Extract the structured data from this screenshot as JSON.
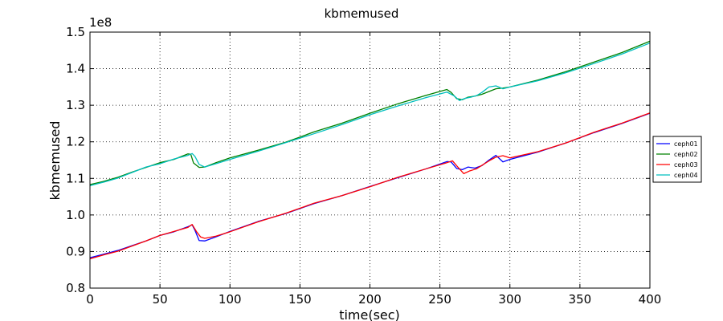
{
  "chart_data": {
    "type": "line",
    "title": "kbmemused",
    "xlabel": "time(sec)",
    "ylabel": "kbmemused",
    "y_offset_label": "1e8",
    "xlim": [
      0,
      400
    ],
    "ylim": [
      0.8,
      1.5
    ],
    "x_ticks": [
      0,
      50,
      100,
      150,
      200,
      250,
      300,
      350,
      400
    ],
    "y_ticks": [
      0.8,
      0.9,
      1.0,
      1.1,
      1.2,
      1.3,
      1.4,
      1.5
    ],
    "y_tick_labels": [
      "0.8",
      "0.9",
      "1.0",
      "1.1",
      "1.2",
      "1.3",
      "1.4",
      "1.5"
    ],
    "grid": true,
    "legend_position": "center-right-outside",
    "series": [
      {
        "name": "ceph01",
        "color": "#0000ff",
        "x": [
          0,
          10,
          20,
          30,
          40,
          50,
          60,
          70,
          73,
          75,
          78,
          82,
          90,
          100,
          120,
          140,
          160,
          180,
          200,
          220,
          240,
          255,
          258,
          262,
          266,
          270,
          275,
          280,
          285,
          290,
          295,
          300,
          320,
          340,
          360,
          380,
          400
        ],
        "y": [
          0.883,
          0.893,
          0.903,
          0.916,
          0.929,
          0.944,
          0.954,
          0.968,
          0.973,
          0.958,
          0.93,
          0.929,
          0.94,
          0.955,
          0.982,
          1.004,
          1.031,
          1.053,
          1.078,
          1.102,
          1.126,
          1.146,
          1.145,
          1.127,
          1.124,
          1.131,
          1.128,
          1.135,
          1.15,
          1.163,
          1.145,
          1.152,
          1.172,
          1.197,
          1.225,
          1.25,
          1.278
        ]
      },
      {
        "name": "ceph02",
        "color": "#008000",
        "x": [
          0,
          10,
          20,
          30,
          40,
          50,
          60,
          70,
          72,
          74,
          78,
          82,
          90,
          100,
          120,
          140,
          160,
          180,
          200,
          220,
          240,
          255,
          258,
          262,
          266,
          270,
          275,
          280,
          290,
          295,
          300,
          320,
          340,
          360,
          380,
          400
        ],
        "y": [
          1.083,
          1.092,
          1.103,
          1.117,
          1.13,
          1.143,
          1.152,
          1.167,
          1.166,
          1.142,
          1.13,
          1.131,
          1.143,
          1.156,
          1.177,
          1.199,
          1.227,
          1.251,
          1.278,
          1.304,
          1.327,
          1.343,
          1.335,
          1.318,
          1.315,
          1.322,
          1.325,
          1.33,
          1.345,
          1.347,
          1.35,
          1.369,
          1.392,
          1.418,
          1.444,
          1.475
        ]
      },
      {
        "name": "ceph03",
        "color": "#ff0000",
        "x": [
          0,
          10,
          20,
          30,
          40,
          50,
          60,
          70,
          73,
          76,
          79,
          82,
          90,
          100,
          120,
          140,
          160,
          180,
          200,
          220,
          240,
          255,
          259,
          263,
          267,
          271,
          276,
          281,
          286,
          290,
          295,
          300,
          320,
          340,
          360,
          380,
          400
        ],
        "y": [
          0.88,
          0.891,
          0.901,
          0.915,
          0.929,
          0.944,
          0.955,
          0.966,
          0.974,
          0.955,
          0.94,
          0.936,
          0.942,
          0.954,
          0.981,
          1.005,
          1.032,
          1.053,
          1.077,
          1.103,
          1.126,
          1.143,
          1.148,
          1.13,
          1.113,
          1.12,
          1.126,
          1.138,
          1.15,
          1.158,
          1.162,
          1.156,
          1.173,
          1.197,
          1.226,
          1.251,
          1.279
        ]
      },
      {
        "name": "ceph04",
        "color": "#00bfbf",
        "x": [
          0,
          10,
          20,
          30,
          40,
          50,
          60,
          70,
          73,
          75,
          78,
          82,
          90,
          100,
          120,
          140,
          160,
          180,
          200,
          220,
          240,
          255,
          260,
          264,
          268,
          272,
          276,
          280,
          285,
          290,
          295,
          300,
          320,
          340,
          360,
          380,
          400
        ],
        "y": [
          1.08,
          1.09,
          1.101,
          1.116,
          1.131,
          1.14,
          1.153,
          1.163,
          1.168,
          1.16,
          1.138,
          1.131,
          1.14,
          1.152,
          1.174,
          1.198,
          1.222,
          1.247,
          1.274,
          1.298,
          1.321,
          1.336,
          1.326,
          1.313,
          1.319,
          1.322,
          1.326,
          1.335,
          1.35,
          1.353,
          1.345,
          1.35,
          1.367,
          1.389,
          1.414,
          1.44,
          1.47
        ]
      }
    ]
  }
}
